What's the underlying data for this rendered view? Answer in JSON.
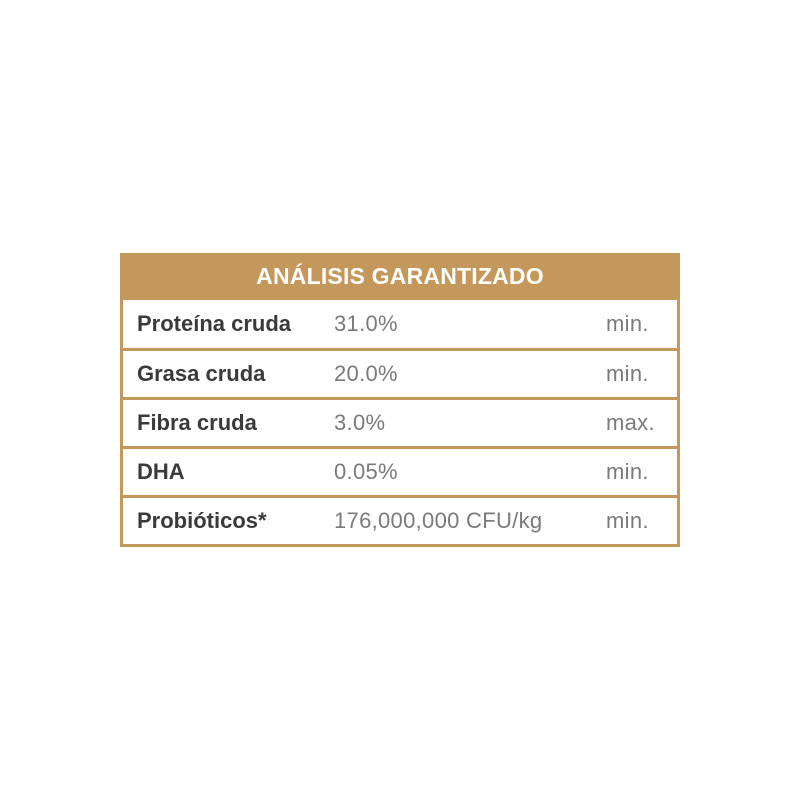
{
  "table": {
    "title": "ANÁLISIS GARANTIZADO",
    "accent_color": "#c4975a",
    "rows": [
      {
        "label": "Proteína cruda",
        "value": "31.0%",
        "unit": "min."
      },
      {
        "label": "Grasa cruda",
        "value": "20.0%",
        "unit": "min."
      },
      {
        "label": "Fibra cruda",
        "value": "3.0%",
        "unit": "max."
      },
      {
        "label": "DHA",
        "value": "0.05%",
        "unit": "min."
      },
      {
        "label": "Probióticos*",
        "value": "176,000,000 CFU/kg",
        "unit": "min."
      }
    ]
  }
}
